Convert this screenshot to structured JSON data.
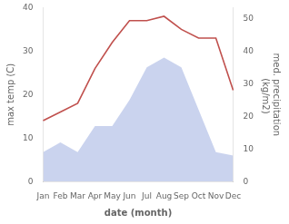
{
  "chart_data": {
    "type": "line",
    "categories": [
      "Jan",
      "Feb",
      "Mar",
      "Apr",
      "May",
      "Jun",
      "Jul",
      "Aug",
      "Sep",
      "Oct",
      "Nov",
      "Dec"
    ],
    "series": [
      {
        "type": "line",
        "color": "#c0504d",
        "values": [
          14,
          16,
          18,
          26,
          32,
          37,
          37,
          38,
          35,
          33,
          33,
          21
        ]
      },
      {
        "type": "area",
        "color": "#b8c4e8",
        "axis": "y2",
        "values": [
          9,
          12,
          9,
          17,
          17,
          25,
          35,
          38,
          35,
          22,
          9,
          8
        ]
      }
    ],
    "xlabel": "date (month)",
    "ylabel": "max temp (C)",
    "y2label": "med. precipitation\n (kg/m2)",
    "ylim": [
      0,
      40
    ],
    "yticks": [
      0,
      10,
      20,
      30,
      40
    ],
    "y2lim": [
      0,
      53.3
    ],
    "y2ticks": [
      0,
      10,
      20,
      30,
      40,
      50
    ],
    "grid": false
  }
}
